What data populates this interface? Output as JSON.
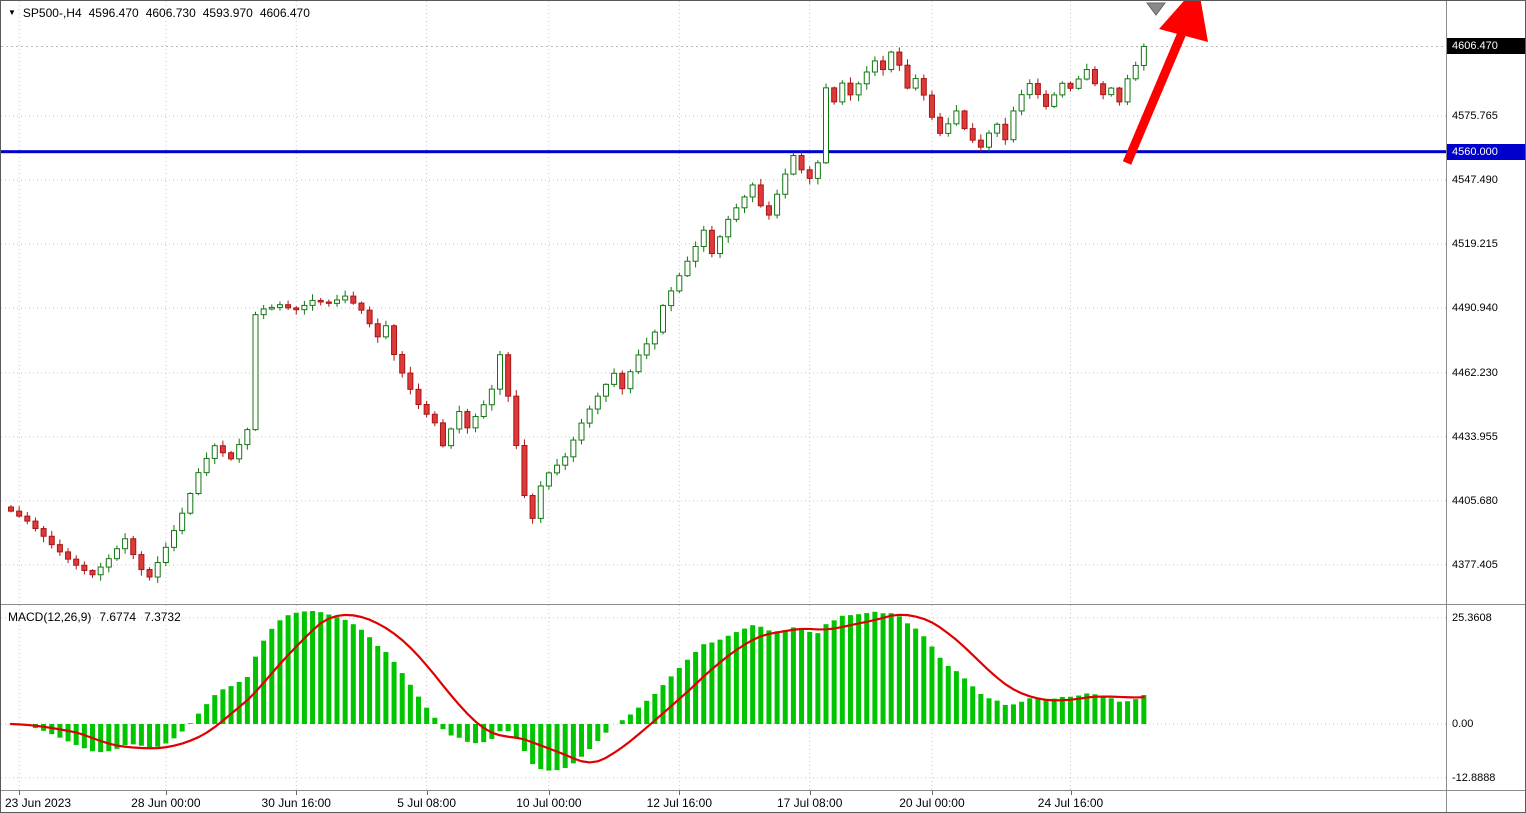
{
  "header": {
    "symbol_period": "SP500-,H4",
    "ohlc": {
      "open": "4596.470",
      "high": "4606.730",
      "low": "4593.970",
      "close": "4606.470"
    }
  },
  "icons": {
    "symbol_dropdown": "▼"
  },
  "price_axis": {
    "current_badge": "4606.470",
    "line_badge": "4560.000",
    "labels": [
      "4575.765",
      "4547.490",
      "4519.215",
      "4490.940",
      "4462.230",
      "4433.955",
      "4405.680",
      "4377.405"
    ]
  },
  "hline": {
    "value": 4560.0,
    "label": "4560.000"
  },
  "time_axis": {
    "labels": [
      {
        "text": "23 Jun 2023",
        "bar": 1
      },
      {
        "text": "28 Jun 00:00",
        "bar": 19
      },
      {
        "text": "30 Jun 16:00",
        "bar": 35
      },
      {
        "text": "5 Jul 08:00",
        "bar": 51
      },
      {
        "text": "10 Jul 00:00",
        "bar": 66
      },
      {
        "text": "12 Jul 16:00",
        "bar": 82
      },
      {
        "text": "17 Jul 08:00",
        "bar": 98
      },
      {
        "text": "20 Jul 00:00",
        "bar": 113
      },
      {
        "text": "24 Jul 16:00",
        "bar": 130
      }
    ]
  },
  "macd": {
    "title": "MACD(12,26,9)",
    "main_value": "7.6774",
    "signal_value": "7.3732",
    "axis_labels": [
      "25.3608",
      "0.00",
      "-12.8888"
    ],
    "axis_max": 25.3608,
    "axis_min": -12.8888
  },
  "chart_data": {
    "type": "candlestick",
    "symbol": "SP500",
    "timeframe": "H4",
    "current_price": 4606.47,
    "first_open": 4403.0,
    "price_grid_step": 28.275,
    "support_line": 4560.0,
    "closes": [
      4401.2,
      4399.0,
      4396.8,
      4393.5,
      4390.1,
      4386.4,
      4383.2,
      4380.0,
      4377.3,
      4375.0,
      4373.1,
      4376.5,
      4380.2,
      4384.6,
      4389.0,
      4382.0,
      4375.4,
      4372.1,
      4378.5,
      4385.2,
      4392.6,
      4400.3,
      4409.0,
      4418.2,
      4424.5,
      4430.1,
      4427.0,
      4424.3,
      4430.6,
      4437.2,
      4488.0,
      4490.5,
      4491.2,
      4492.4,
      4491.0,
      4490.2,
      4492.1,
      4494.3,
      4493.6,
      4493.0,
      4494.5,
      4496.2,
      4493.1,
      4490.0,
      4484.0,
      4478.2,
      4483.1,
      4470.4,
      4462.2,
      4455.0,
      4448.3,
      4444.0,
      4440.2,
      4430.1,
      4437.5,
      4445.2,
      4438.0,
      4443.0,
      4448.2,
      4455.1,
      4470.3,
      4452.0,
      4430.2,
      4408.1,
      4398.0,
      4412.3,
      4418.1,
      4421.5,
      4425.2,
      4432.6,
      4440.1,
      4446.3,
      4452.0,
      4457.2,
      4462.1,
      4455.3,
      4462.8,
      4470.2,
      4475.1,
      4480.3,
      4492.0,
      4498.5,
      4505.2,
      4511.6,
      4518.1,
      4525.3,
      4515.0,
      4522.4,
      4530.1,
      4535.2,
      4540.0,
      4545.3,
      4536.1,
      4532.0,
      4541.2,
      4550.1,
      4558.3,
      4552.0,
      4548.2,
      4555.1,
      4588.2,
      4582.0,
      4590.3,
      4585.1,
      4590.0,
      4595.2,
      4600.1,
      4596.3,
      4604.0,
      4598.2,
      4588.1,
      4592.3,
      4585.0,
      4575.2,
      4568.1,
      4572.3,
      4578.0,
      4570.2,
      4565.1,
      4562.0,
      4568.2,
      4572.1,
      4565.3,
      4578.0,
      4585.2,
      4590.1,
      4585.3,
      4580.0,
      4585.1,
      4590.2,
      4588.0,
      4592.1,
      4596.3,
      4590.0,
      4585.2,
      4588.1,
      4582.0,
      4592.2,
      4598.1,
      4606.5
    ],
    "indicator": {
      "type": "MACD",
      "fast": 12,
      "slow": 26,
      "signal": 9,
      "last_main": 7.6774,
      "last_signal": 7.3732
    }
  },
  "colors": {
    "up_body": "#ffffff",
    "up_border": "#117711",
    "down_body": "#dd3a3a",
    "down_border": "#aa1515",
    "macd_hist": "#00c400",
    "macd_signal": "#e00000",
    "hline": "#0000cc",
    "hline_badge_bg": "#0000cc",
    "current_badge_bg": "#000000",
    "arrow": "#ff0000",
    "grid": "#c6c6c6",
    "marker_gray": "#8a8a8a"
  }
}
